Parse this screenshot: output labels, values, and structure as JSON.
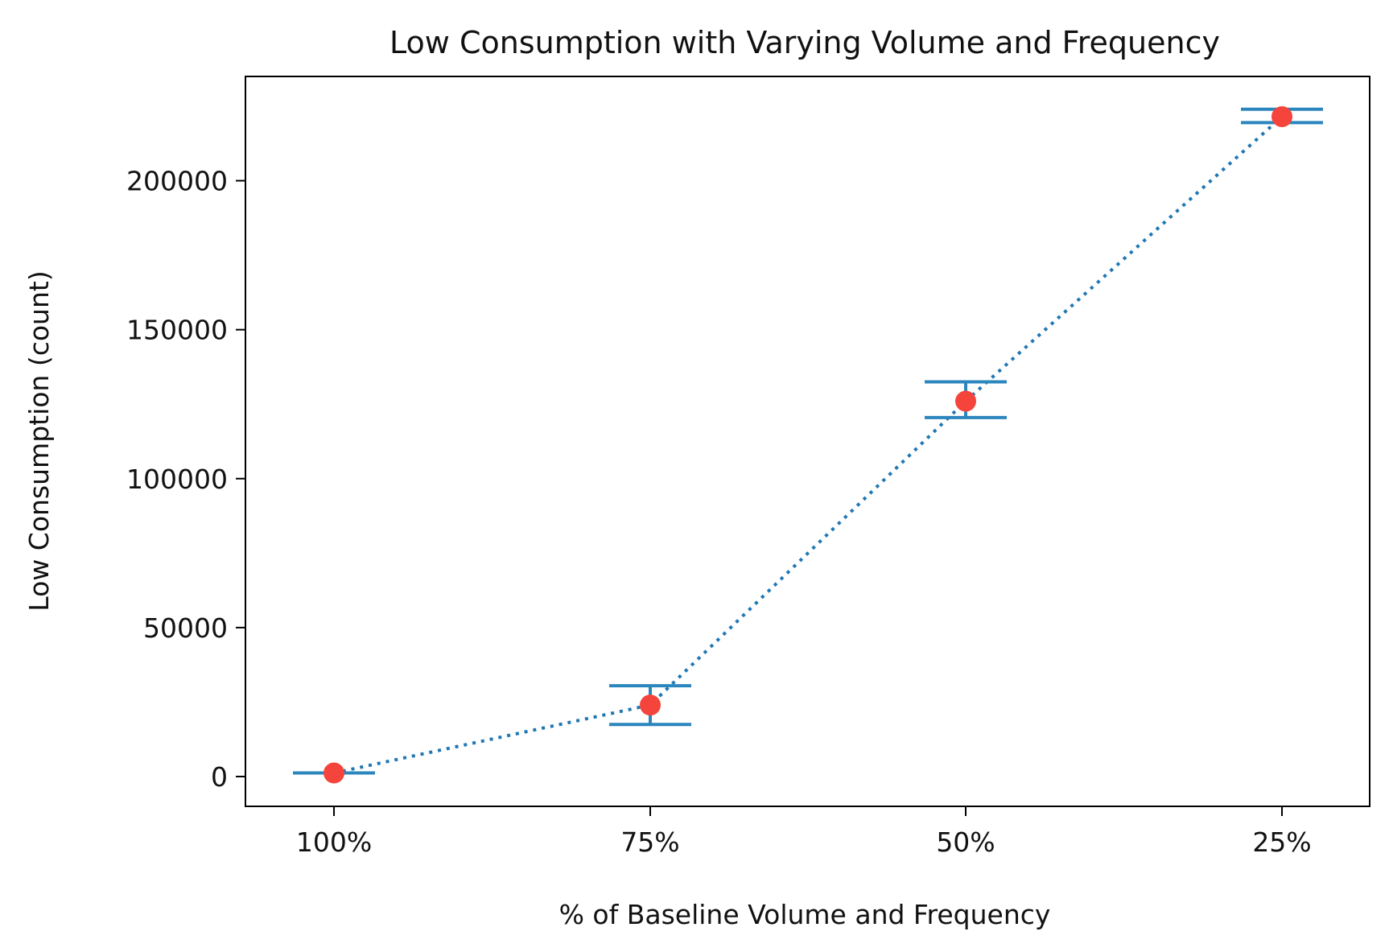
{
  "chart_data": {
    "type": "line",
    "title": "Low Consumption with Varying Volume and Frequency",
    "xlabel": "% of Baseline Volume and Frequency",
    "ylabel": "Low Consumption (count)",
    "categories": [
      "100%",
      "75%",
      "50%",
      "25%"
    ],
    "ylim": [
      -10000,
      235000
    ],
    "yticks": [
      0,
      50000,
      100000,
      150000,
      200000
    ],
    "ytick_labels": [
      "0",
      "50000",
      "100000",
      "150000",
      "200000"
    ],
    "grid": false,
    "series": [
      {
        "values": [
          1200,
          24000,
          126000,
          221500
        ],
        "error_low": [
          1200,
          17500,
          120500,
          219500
        ],
        "error_high": [
          1200,
          30500,
          132500,
          224000
        ],
        "line_style": "dotted",
        "line_color": "#1f77b4",
        "errorbar_color": "#2b86bd",
        "marker_color": "#f5443b"
      }
    ]
  }
}
